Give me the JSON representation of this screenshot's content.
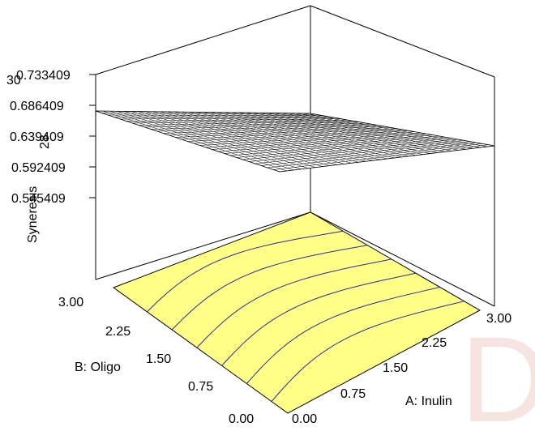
{
  "chart_data": {
    "type": "surface3d",
    "title": "",
    "xlabel": "A: Inulin",
    "ylabel": "B: Oligo",
    "zlabel": "Syneresis",
    "xlim": [
      0,
      3
    ],
    "ylim": [
      0,
      3
    ],
    "x_ticks": [
      "0.00",
      "0.75",
      "1.50",
      "2.25",
      "3.00"
    ],
    "y_ticks": [
      "0.00",
      "0.75",
      "1.50",
      "2.25",
      "3.00"
    ],
    "z_ticks_left": [
      "0.733409",
      "0.686409",
      "0.639409",
      "0.592409",
      "0.545409"
    ],
    "z_ticks_overlap": [
      "30",
      "28"
    ],
    "surface_color": "#ffffff",
    "contour_floor_color": "#ffff88",
    "contour_line_color": "#2a2a9c",
    "contour_count": 6,
    "watermark": "D"
  }
}
